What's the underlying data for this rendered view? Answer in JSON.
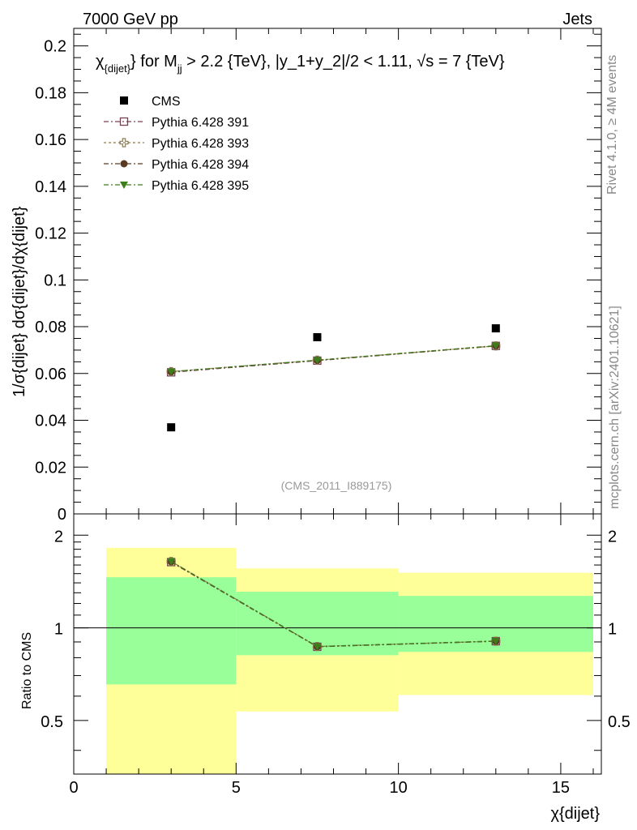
{
  "header": {
    "left": "7000 GeV pp",
    "right": "Jets"
  },
  "side_labels": {
    "rivet": "Rivet 4.1.0, ≥ 4M events",
    "mcplots": "mcplots.cern.ch [arXiv:2401.10621]"
  },
  "chart_data": {
    "type": "scatter",
    "title_parts": {
      "chi": "χ",
      "chi_sub": "{dijet}",
      "mid": "} for M",
      "m_sub": "jj",
      "rest": " > 2.2 {TeV}, |y_1+y_2|/2 < 1.11, √s = 7 {TeV}"
    },
    "watermark": "(CMS_2011_I889175)",
    "ylabel_main": "1/σ{dijet} dσ{dijet}/dχ{dijet}",
    "ylabel_ratio": "Ratio to CMS",
    "xlabel": "χ{dijet}",
    "xlim": [
      0,
      16.25
    ],
    "ylim_main": [
      0,
      0.2075
    ],
    "ylim_ratio": [
      0.335,
      2.345
    ],
    "x_ticks": [
      0,
      5,
      10,
      15
    ],
    "x_tick_labels": [
      "0",
      "5",
      "10",
      "15"
    ],
    "y_ticks_main": [
      0,
      0.02,
      0.04,
      0.06,
      0.08,
      0.1,
      0.12,
      0.14,
      0.16,
      0.18,
      0.2
    ],
    "y_tick_labels_main": [
      "0",
      "0.02",
      "0.04",
      "0.06",
      "0.08",
      "0.1",
      "0.12",
      "0.14",
      "0.16",
      "0.18",
      "0.2"
    ],
    "y_ticks_ratio": [
      0.5,
      1,
      2
    ],
    "y_tick_labels_ratio": [
      "0.5",
      "1",
      "2"
    ],
    "bins": [
      [
        1,
        5
      ],
      [
        5,
        10
      ],
      [
        10,
        16
      ]
    ],
    "band_outer": [
      [
        0.335,
        1.82
      ],
      [
        0.535,
        1.56
      ],
      [
        0.605,
        1.51
      ]
    ],
    "band_inner": [
      [
        0.655,
        1.46
      ],
      [
        0.815,
        1.31
      ],
      [
        0.835,
        1.27
      ]
    ],
    "data": {
      "name": "CMS",
      "x": [
        3,
        7.5,
        13
      ],
      "y": [
        0.037,
        0.0755,
        0.0793
      ]
    },
    "series": [
      {
        "name": "Pythia 6.428 391",
        "color": "#7a3f55",
        "marker": "open-square",
        "x": [
          3,
          7.5,
          13
        ],
        "y": [
          0.0605,
          0.0655,
          0.0718
        ],
        "ratio": [
          1.635,
          0.868,
          0.905
        ]
      },
      {
        "name": "Pythia 6.428 393",
        "color": "#8c7a52",
        "marker": "open-cross",
        "x": [
          3,
          7.5,
          13
        ],
        "y": [
          0.0608,
          0.0657,
          0.0718
        ],
        "ratio": [
          1.643,
          0.87,
          0.905
        ]
      },
      {
        "name": "Pythia 6.428 394",
        "color": "#5b3a22",
        "marker": "circle",
        "x": [
          3,
          7.5,
          13
        ],
        "y": [
          0.0607,
          0.0656,
          0.0718
        ],
        "ratio": [
          1.64,
          0.869,
          0.905
        ]
      },
      {
        "name": "Pythia 6.428 395",
        "color": "#3e7d1b",
        "marker": "triangle-down",
        "x": [
          3,
          7.5,
          13
        ],
        "y": [
          0.0608,
          0.0657,
          0.0719
        ],
        "ratio": [
          1.643,
          0.87,
          0.906
        ]
      }
    ]
  }
}
